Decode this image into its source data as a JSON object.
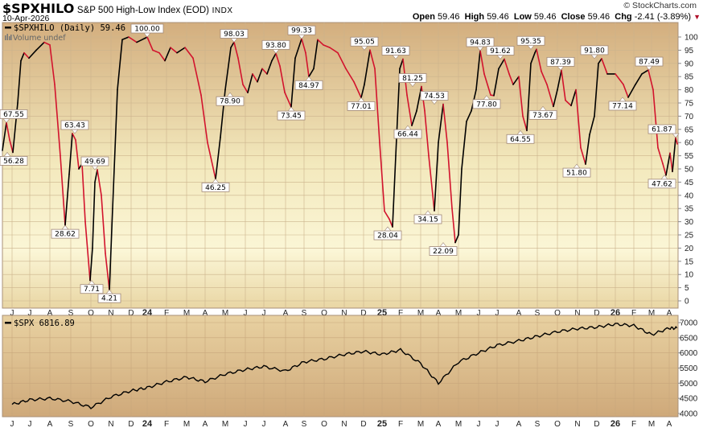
{
  "header": {
    "symbol": "$SPXHILO",
    "description": "S&P 500 High-Low Index (EOD)",
    "exchange": "INDX",
    "date": "10-Apr-2026",
    "copyright": "© StockCharts.com",
    "ohlc": {
      "open_label": "Open",
      "open": "59.46",
      "high_label": "High",
      "high": "59.46",
      "low_label": "Low",
      "low": "59.46",
      "close_label": "Close",
      "close": "59.46",
      "chg_label": "Chg",
      "chg": "-2.41 (-3.89%)",
      "chg_direction": "down"
    }
  },
  "colors": {
    "panel_top": "#d2ad7c",
    "panel_mid": "#f8f3d0",
    "up_line": "#000000",
    "down_line": "#d2132d",
    "grid": "#c9b089",
    "label_border": "#a08878"
  },
  "upper_panel": {
    "legend": "$SPXHILO (Daily) 59.46",
    "volume_note": "Volume undef"
  },
  "lower_panel": {
    "legend": "$SPX 6816.89"
  },
  "chart_data": [
    {
      "type": "line",
      "title": "$SPXHILO S&P 500 High-Low Index (EOD)",
      "xlabel": "",
      "ylabel": "",
      "ylim": [
        0,
        100
      ],
      "yticks": [
        0,
        5,
        10,
        15,
        20,
        25,
        30,
        35,
        40,
        45,
        50,
        55,
        60,
        65,
        70,
        75,
        80,
        85,
        90,
        95,
        100
      ],
      "grid": true,
      "legend": "$SPXHILO (Daily) 59.46",
      "last_value": 59.46,
      "x_tick_labels": [
        "J",
        "J",
        "A",
        "S",
        "O",
        "N",
        "D",
        "24",
        "F",
        "M",
        "A",
        "M",
        "J",
        "J",
        "A",
        "S",
        "O",
        "N",
        "D",
        "25",
        "F",
        "M",
        "A",
        "M",
        "J",
        "J",
        "A",
        "S",
        "O",
        "N",
        "D",
        "26",
        "F",
        "M",
        "A"
      ],
      "annotated_points": [
        {
          "label": "67.55",
          "value": 67.55,
          "date": "Jun-2023"
        },
        {
          "label": "56.28",
          "value": 56.28,
          "date": "Jun-2023"
        },
        {
          "label": "63.43",
          "value": 63.43,
          "date": "Sep-2023"
        },
        {
          "label": "28.62",
          "value": 28.62,
          "date": "Aug-2023"
        },
        {
          "label": "49.69",
          "value": 49.69,
          "date": "Oct-2023"
        },
        {
          "label": "7.71",
          "value": 7.71,
          "date": "Oct-2023"
        },
        {
          "label": "4.21",
          "value": 4.21,
          "date": "Oct-2023"
        },
        {
          "label": "100.00",
          "value": 100.0,
          "date": "Dec-2023"
        },
        {
          "label": "46.25",
          "value": 46.25,
          "date": "Apr-2024"
        },
        {
          "label": "98.03",
          "value": 98.03,
          "date": "May-2024"
        },
        {
          "label": "78.90",
          "value": 78.9,
          "date": "Jun-2024"
        },
        {
          "label": "93.80",
          "value": 93.8,
          "date": "Jul-2024"
        },
        {
          "label": "73.45",
          "value": 73.45,
          "date": "Aug-2024"
        },
        {
          "label": "99.33",
          "value": 99.33,
          "date": "Aug-2024"
        },
        {
          "label": "84.97",
          "value": 84.97,
          "date": "Sep-2024"
        },
        {
          "label": "77.01",
          "value": 77.01,
          "date": "Nov-2024"
        },
        {
          "label": "95.05",
          "value": 95.05,
          "date": "Dec-2024"
        },
        {
          "label": "28.04",
          "value": 28.04,
          "date": "Jan-2025"
        },
        {
          "label": "91.63",
          "value": 91.63,
          "date": "Jan-2025"
        },
        {
          "label": "66.44",
          "value": 66.44,
          "date": "Feb-2025"
        },
        {
          "label": "81.25",
          "value": 81.25,
          "date": "Feb-2025"
        },
        {
          "label": "34.15",
          "value": 34.15,
          "date": "Mar-2025"
        },
        {
          "label": "74.53",
          "value": 74.53,
          "date": "Mar-2025"
        },
        {
          "label": "22.09",
          "value": 22.09,
          "date": "Apr-2025"
        },
        {
          "label": "94.83",
          "value": 94.83,
          "date": "Jun-2025"
        },
        {
          "label": "77.80",
          "value": 77.8,
          "date": "Jul-2025"
        },
        {
          "label": "91.62",
          "value": 91.62,
          "date": "Jul-2025"
        },
        {
          "label": "64.55",
          "value": 64.55,
          "date": "Aug-2025"
        },
        {
          "label": "95.35",
          "value": 95.35,
          "date": "Aug-2025"
        },
        {
          "label": "73.67",
          "value": 73.67,
          "date": "Oct-2025"
        },
        {
          "label": "87.39",
          "value": 87.39,
          "date": "Oct-2025"
        },
        {
          "label": "51.80",
          "value": 51.8,
          "date": "Nov-2025"
        },
        {
          "label": "91.80",
          "value": 91.8,
          "date": "Dec-2025"
        },
        {
          "label": "77.14",
          "value": 77.14,
          "date": "Jan-2026"
        },
        {
          "label": "87.49",
          "value": 87.49,
          "date": "Feb-2026"
        },
        {
          "label": "47.62",
          "value": 47.62,
          "date": "Mar-2026"
        },
        {
          "label": "61.87",
          "value": 61.87,
          "date": "Apr-2026"
        }
      ]
    },
    {
      "type": "line",
      "title": "$SPX",
      "legend": "$SPX 6816.89",
      "last_value": 6816.89,
      "ylim": [
        4000,
        7000
      ],
      "yticks": [
        4000,
        4500,
        5000,
        5500,
        6000,
        6500,
        7000
      ],
      "grid": true,
      "x_tick_labels": [
        "J",
        "J",
        "A",
        "S",
        "O",
        "N",
        "D",
        "24",
        "F",
        "M",
        "A",
        "M",
        "J",
        "J",
        "A",
        "S",
        "O",
        "N",
        "D",
        "25",
        "F",
        "M",
        "A",
        "M",
        "J",
        "J",
        "A",
        "S",
        "O",
        "N",
        "D",
        "26",
        "F",
        "M",
        "A"
      ],
      "approx_series": [
        {
          "date": "Jun-2023",
          "value": 4300
        },
        {
          "date": "Jul-2023",
          "value": 4450
        },
        {
          "date": "Aug-2023",
          "value": 4500
        },
        {
          "date": "Sep-2023",
          "value": 4400
        },
        {
          "date": "Oct-2023",
          "value": 4200
        },
        {
          "date": "Nov-2023",
          "value": 4550
        },
        {
          "date": "Dec-2023",
          "value": 4750
        },
        {
          "date": "Jan-2024",
          "value": 4850
        },
        {
          "date": "Feb-2024",
          "value": 5050
        },
        {
          "date": "Mar-2024",
          "value": 5200
        },
        {
          "date": "Apr-2024",
          "value": 5050
        },
        {
          "date": "May-2024",
          "value": 5300
        },
        {
          "date": "Jun-2024",
          "value": 5450
        },
        {
          "date": "Jul-2024",
          "value": 5550
        },
        {
          "date": "Aug-2024",
          "value": 5400
        },
        {
          "date": "Sep-2024",
          "value": 5700
        },
        {
          "date": "Oct-2024",
          "value": 5800
        },
        {
          "date": "Nov-2024",
          "value": 5950
        },
        {
          "date": "Dec-2024",
          "value": 6050
        },
        {
          "date": "Jan-2025",
          "value": 5950
        },
        {
          "date": "Feb-2025",
          "value": 6100
        },
        {
          "date": "Mar-2025",
          "value": 5650
        },
        {
          "date": "Apr-2025",
          "value": 5000
        },
        {
          "date": "May-2025",
          "value": 5700
        },
        {
          "date": "Jun-2025",
          "value": 6000
        },
        {
          "date": "Jul-2025",
          "value": 6250
        },
        {
          "date": "Aug-2025",
          "value": 6400
        },
        {
          "date": "Sep-2025",
          "value": 6550
        },
        {
          "date": "Oct-2025",
          "value": 6700
        },
        {
          "date": "Nov-2025",
          "value": 6800
        },
        {
          "date": "Dec-2025",
          "value": 6850
        },
        {
          "date": "Jan-2026",
          "value": 6950
        },
        {
          "date": "Feb-2026",
          "value": 6900
        },
        {
          "date": "Mar-2026",
          "value": 6600
        },
        {
          "date": "Apr-2026",
          "value": 6817
        }
      ]
    }
  ]
}
